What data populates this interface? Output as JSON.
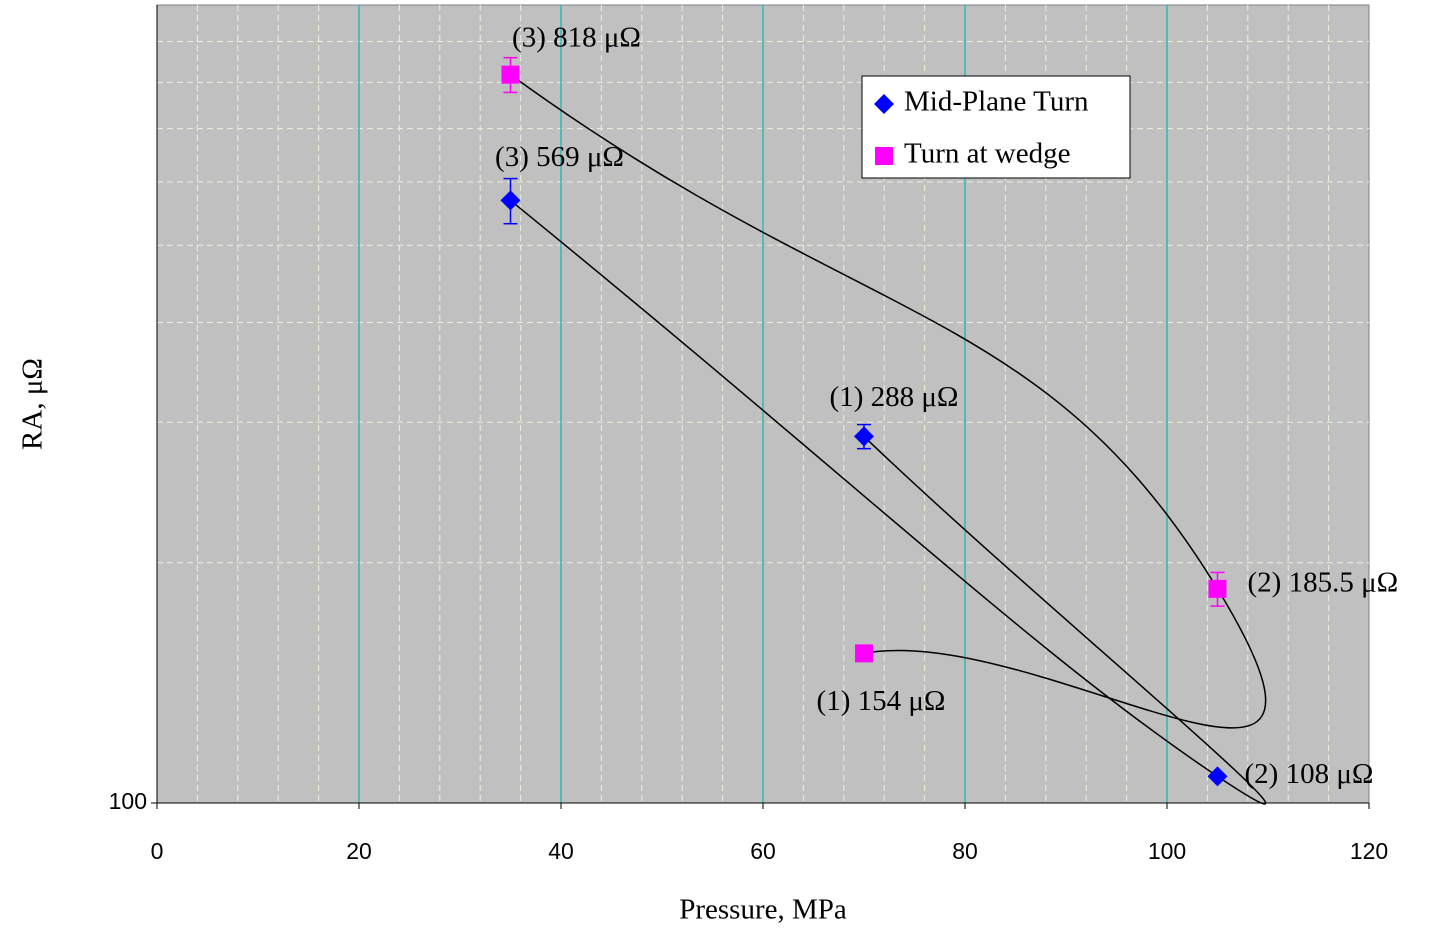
{
  "chart_data": {
    "type": "scatter",
    "x_label": "Pressure, MPa",
    "y_label": "RA, μΩ",
    "xlim": [
      0,
      120
    ],
    "xticks": [
      0,
      20,
      40,
      60,
      80,
      100,
      120
    ],
    "x_minor_grid": [
      4,
      8,
      12,
      16,
      24,
      28,
      32,
      36,
      44,
      48,
      52,
      56,
      64,
      68,
      72,
      76,
      84,
      88,
      92,
      96,
      104,
      108,
      112,
      116
    ],
    "ylim": [
      100,
      1000
    ],
    "yticks": [
      100
    ],
    "y_minor_grid": [
      200,
      300,
      400,
      500,
      600,
      700,
      800,
      900
    ],
    "log_y": true,
    "grid": true,
    "legend": "upper right",
    "line_color": "#000000",
    "series": [
      {
        "name": "Mid-Plane Turn",
        "color": "#0000ff",
        "marker": "diamond",
        "x": [
          70,
          105,
          35
        ],
        "values": [
          288,
          108,
          569
        ],
        "errors": [
          10,
          null,
          37
        ],
        "value_labels": [
          "(1) 288 μΩ",
          "(2) 108 μΩ",
          "(3) 569 μΩ"
        ]
      },
      {
        "name": "Turn at wedge",
        "color": "#ff00ff",
        "marker": "square",
        "x": [
          70,
          105,
          35
        ],
        "values": [
          154,
          185.5,
          818
        ],
        "errors": [
          null,
          9,
          41
        ],
        "value_labels": [
          "(1) 154 μΩ",
          "(2) 185.5 μΩ",
          "(3) 818 μΩ"
        ]
      }
    ]
  }
}
